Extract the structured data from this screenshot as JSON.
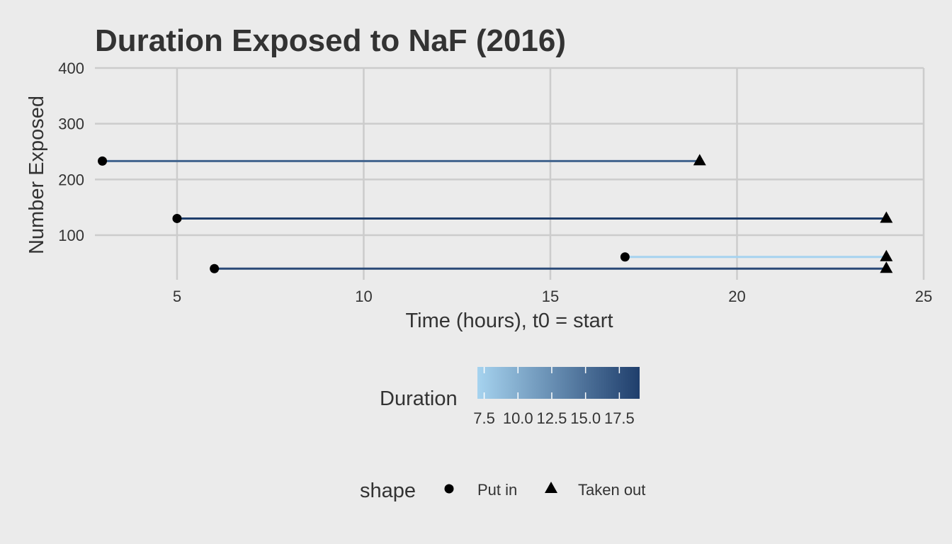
{
  "chart_data": {
    "type": "line",
    "title": "Duration Exposed to NaF (2016)",
    "xlabel": "Time (hours), t0 = start",
    "ylabel": "Number Exposed",
    "xlim": [
      2.8,
      25
    ],
    "ylim": [
      20,
      400
    ],
    "x_ticks": [
      5,
      10,
      15,
      20,
      25
    ],
    "y_ticks": [
      100,
      200,
      300,
      400
    ],
    "grid": true,
    "segments": [
      {
        "start": 3,
        "end": 19,
        "value": 233,
        "duration": 16
      },
      {
        "start": 5,
        "end": 24,
        "value": 130,
        "duration": 19
      },
      {
        "start": 17,
        "end": 24,
        "value": 61,
        "duration": 7
      },
      {
        "start": 6,
        "end": 24,
        "value": 40,
        "duration": 18
      }
    ],
    "color_scale": {
      "title": "Duration",
      "min": 7,
      "max": 19,
      "low_color": "#a6d3ef",
      "high_color": "#1f3e6c",
      "breaks": [
        7.5,
        10.0,
        12.5,
        15.0,
        17.5
      ],
      "break_labels": [
        "7.5",
        "10.0",
        "12.5",
        "15.0",
        "17.5"
      ]
    },
    "shape_legend": {
      "title": "shape",
      "items": [
        {
          "label": "Put in",
          "shape": "circle"
        },
        {
          "label": "Taken out",
          "shape": "triangle"
        }
      ]
    }
  }
}
